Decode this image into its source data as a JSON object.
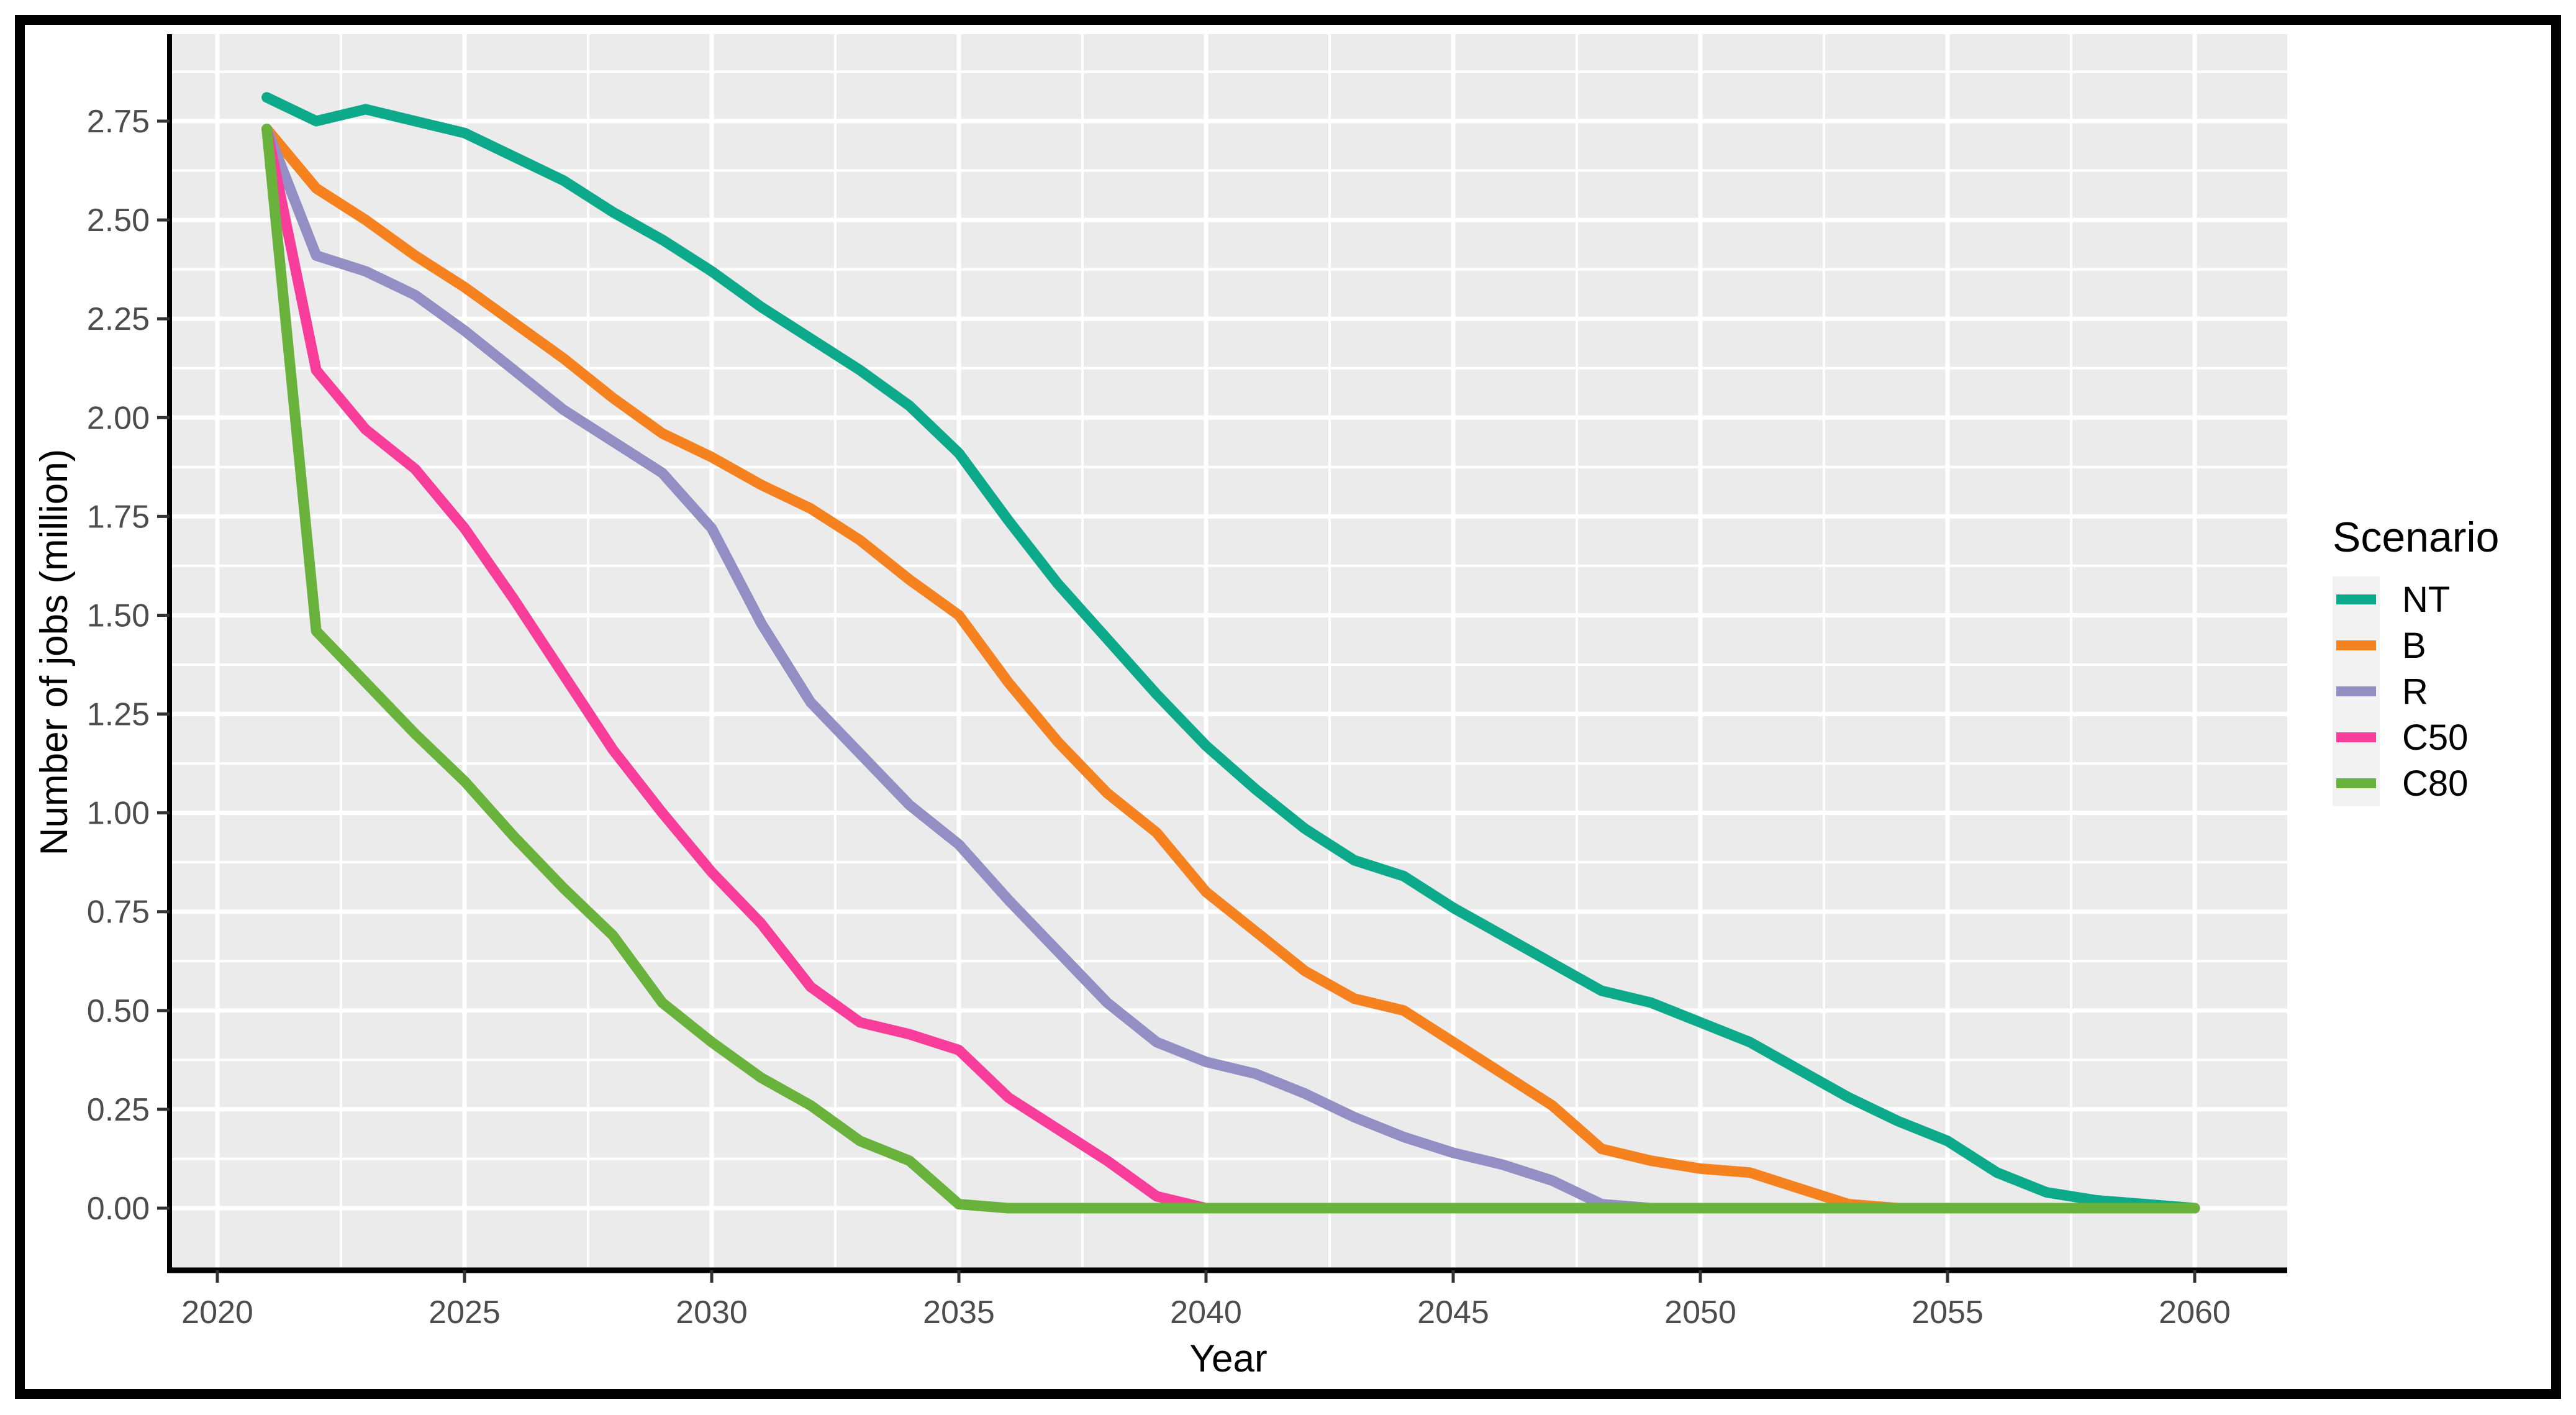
{
  "colors": {
    "panel_background": "#EBEBEB",
    "gridline": "#FFFFFF",
    "axis_line": "#000000",
    "tick_mark": "#333333",
    "tick_label": "#4D4D4D",
    "legend_key_background": "#F2F2F2",
    "outer_frame": "#000000",
    "series": {
      "NT": "#0CA98B",
      "B": "#F5821E",
      "R": "#938EC4",
      "C50": "#F93D9B",
      "C80": "#69B33C"
    }
  },
  "chart_data": {
    "type": "line",
    "title": "",
    "xlabel": "Year",
    "ylabel": "Number of jobs (million)",
    "legend": {
      "title": "Scenario",
      "position": "right"
    },
    "grid": "major and minor white gridlines on grey panel",
    "xlim": [
      2019.0,
      2061.9
    ],
    "ylim": [
      -0.16,
      2.97
    ],
    "x_ticks": [
      2020,
      2025,
      2030,
      2035,
      2040,
      2045,
      2050,
      2055,
      2060
    ],
    "y_ticks": [
      "0.00",
      "0.25",
      "0.50",
      "0.75",
      "1.00",
      "1.25",
      "1.50",
      "1.75",
      "2.00",
      "2.25",
      "2.50",
      "2.75"
    ],
    "x": [
      2021,
      2022,
      2023,
      2024,
      2025,
      2026,
      2027,
      2028,
      2029,
      2030,
      2031,
      2032,
      2033,
      2034,
      2035,
      2036,
      2037,
      2038,
      2039,
      2040,
      2041,
      2042,
      2043,
      2044,
      2045,
      2046,
      2047,
      2048,
      2049,
      2050,
      2051,
      2052,
      2053,
      2054,
      2055,
      2056,
      2057,
      2058,
      2059,
      2060
    ],
    "series": [
      {
        "name": "NT",
        "color": "#0CA98B",
        "values": [
          2.81,
          2.75,
          2.78,
          2.75,
          2.72,
          2.66,
          2.6,
          2.52,
          2.45,
          2.37,
          2.28,
          2.2,
          2.12,
          2.03,
          1.91,
          1.74,
          1.58,
          1.44,
          1.3,
          1.17,
          1.06,
          0.96,
          0.88,
          0.84,
          0.76,
          0.69,
          0.62,
          0.55,
          0.52,
          0.47,
          0.42,
          0.35,
          0.28,
          0.22,
          0.17,
          0.09,
          0.04,
          0.02,
          0.01,
          0.0
        ]
      },
      {
        "name": "B",
        "color": "#F5821E",
        "values": [
          2.73,
          2.58,
          2.5,
          2.41,
          2.33,
          2.24,
          2.15,
          2.05,
          1.96,
          1.9,
          1.83,
          1.77,
          1.69,
          1.59,
          1.5,
          1.33,
          1.18,
          1.05,
          0.95,
          0.8,
          0.7,
          0.6,
          0.53,
          0.5,
          0.42,
          0.34,
          0.26,
          0.15,
          0.12,
          0.1,
          0.09,
          0.05,
          0.01,
          0.0,
          0.0,
          0.0,
          0.0,
          0.0,
          0.0,
          0.0
        ]
      },
      {
        "name": "R",
        "color": "#938EC4",
        "values": [
          2.73,
          2.41,
          2.37,
          2.31,
          2.22,
          2.12,
          2.02,
          1.94,
          1.86,
          1.72,
          1.48,
          1.28,
          1.15,
          1.02,
          0.92,
          0.78,
          0.65,
          0.52,
          0.42,
          0.37,
          0.34,
          0.29,
          0.23,
          0.18,
          0.14,
          0.11,
          0.07,
          0.01,
          0.0,
          0.0,
          0.0,
          0.0,
          0.0,
          0.0,
          0.0,
          0.0,
          0.0,
          0.0,
          0.0,
          0.0
        ]
      },
      {
        "name": "C50",
        "color": "#F93D9B",
        "values": [
          2.73,
          2.12,
          1.97,
          1.87,
          1.72,
          1.54,
          1.35,
          1.16,
          1.0,
          0.85,
          0.72,
          0.56,
          0.47,
          0.44,
          0.4,
          0.28,
          0.2,
          0.12,
          0.03,
          0.0,
          0.0,
          0.0,
          0.0,
          0.0,
          0.0,
          0.0,
          0.0,
          0.0,
          0.0,
          0.0,
          0.0,
          0.0,
          0.0,
          0.0,
          0.0,
          0.0,
          0.0,
          0.0,
          0.0,
          0.0
        ]
      },
      {
        "name": "C80",
        "color": "#69B33C",
        "values": [
          2.73,
          1.46,
          1.33,
          1.2,
          1.08,
          0.94,
          0.81,
          0.69,
          0.52,
          0.42,
          0.33,
          0.26,
          0.17,
          0.12,
          0.01,
          0.0,
          0.0,
          0.0,
          0.0,
          0.0,
          0.0,
          0.0,
          0.0,
          0.0,
          0.0,
          0.0,
          0.0,
          0.0,
          0.0,
          0.0,
          0.0,
          0.0,
          0.0,
          0.0,
          0.0,
          0.0,
          0.0,
          0.0,
          0.0,
          0.0
        ]
      }
    ]
  }
}
